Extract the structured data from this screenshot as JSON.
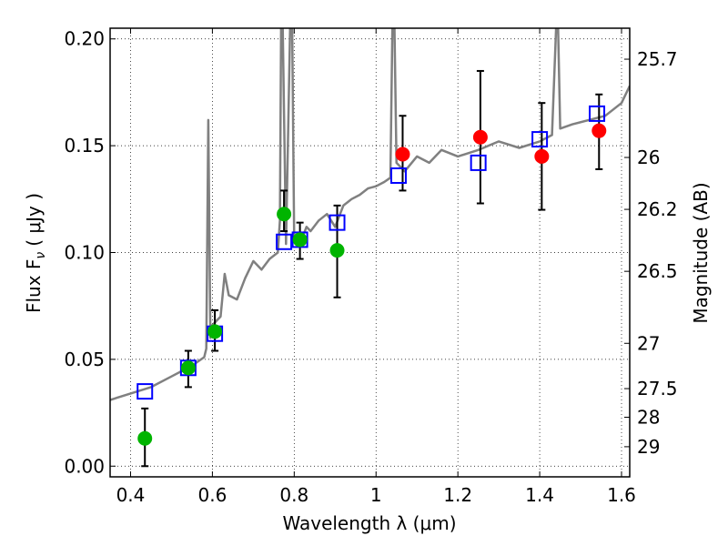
{
  "chart_data": {
    "type": "scatter",
    "x_label": "Wavelength  λ (μm)",
    "y_label": "Flux  F",
    "y_label_sub": "ν",
    "y_label_unit": "( μJy )",
    "y2_label": "Magnitude (AB)",
    "xlim": [
      0.35,
      1.62
    ],
    "ylim": [
      -0.005,
      0.205
    ],
    "x_ticks": [
      0.4,
      0.6,
      0.8,
      1.0,
      1.2,
      1.4,
      1.6
    ],
    "x_tick_labels": [
      "0.4",
      "0.6",
      "0.8",
      "1",
      "1.2",
      "1.4",
      "1.6"
    ],
    "y_ticks": [
      0.0,
      0.05,
      0.1,
      0.15,
      0.2
    ],
    "y_tick_labels": [
      "0.00",
      "0.05",
      "0.10",
      "0.15",
      "0.20"
    ],
    "y2_ticks": [
      {
        "label": "25.7",
        "flux": 0.1905
      },
      {
        "label": "26",
        "flux": 0.1445
      },
      {
        "label": "26.2",
        "flux": 0.1202
      },
      {
        "label": "26.5",
        "flux": 0.0912
      },
      {
        "label": "27",
        "flux": 0.0575
      },
      {
        "label": "27.5",
        "flux": 0.0363
      },
      {
        "label": "28",
        "flux": 0.0229
      },
      {
        "label": "29",
        "flux": 0.0091
      }
    ],
    "grid": true,
    "template_spectrum": {
      "color": "#808080",
      "x": [
        0.35,
        0.4,
        0.45,
        0.5,
        0.55,
        0.58,
        0.585,
        0.59,
        0.595,
        0.6,
        0.62,
        0.63,
        0.64,
        0.66,
        0.68,
        0.7,
        0.72,
        0.74,
        0.76,
        0.765,
        0.768,
        0.772,
        0.78,
        0.79,
        0.795,
        0.8,
        0.81,
        0.82,
        0.83,
        0.84,
        0.86,
        0.88,
        0.9,
        0.92,
        0.94,
        0.96,
        0.98,
        1.0,
        1.02,
        1.035,
        1.04,
        1.045,
        1.05,
        1.07,
        1.1,
        1.13,
        1.16,
        1.2,
        1.25,
        1.3,
        1.35,
        1.4,
        1.43,
        1.44,
        1.445,
        1.45,
        1.48,
        1.52,
        1.56,
        1.6,
        1.62
      ],
      "y": [
        0.031,
        0.034,
        0.037,
        0.042,
        0.047,
        0.051,
        0.055,
        0.162,
        0.06,
        0.066,
        0.07,
        0.09,
        0.08,
        0.078,
        0.088,
        0.096,
        0.092,
        0.097,
        0.1,
        0.115,
        0.205,
        0.205,
        0.104,
        0.205,
        0.205,
        0.105,
        0.104,
        0.107,
        0.112,
        0.11,
        0.115,
        0.118,
        0.112,
        0.122,
        0.125,
        0.127,
        0.13,
        0.131,
        0.133,
        0.135,
        0.205,
        0.205,
        0.142,
        0.138,
        0.145,
        0.142,
        0.148,
        0.145,
        0.148,
        0.152,
        0.149,
        0.152,
        0.155,
        0.205,
        0.205,
        0.158,
        0.16,
        0.162,
        0.164,
        0.17,
        0.178
      ]
    },
    "model_fluxes": {
      "color": "#0000ff",
      "marker": "open-square",
      "x": [
        0.435,
        0.541,
        0.606,
        0.775,
        0.814,
        0.905,
        1.055,
        1.25,
        1.4,
        1.54
      ],
      "y": [
        0.035,
        0.046,
        0.062,
        0.105,
        0.106,
        0.114,
        0.136,
        0.142,
        0.153,
        0.165
      ]
    },
    "observed_optical": {
      "color": "#00b400",
      "marker": "filled-circle",
      "x": [
        0.435,
        0.541,
        0.606,
        0.775,
        0.814,
        0.905
      ],
      "y": [
        0.013,
        0.046,
        0.063,
        0.118,
        0.106,
        0.101
      ],
      "err_low": [
        0.0,
        0.037,
        0.054,
        0.11,
        0.097,
        0.079
      ],
      "err_high": [
        0.027,
        0.054,
        0.073,
        0.129,
        0.114,
        0.122
      ]
    },
    "observed_nir": {
      "color": "#ff0000",
      "marker": "filled-circle",
      "x": [
        1.065,
        1.255,
        1.405,
        1.545
      ],
      "y": [
        0.146,
        0.154,
        0.145,
        0.157
      ],
      "err_low": [
        0.129,
        0.123,
        0.12,
        0.139
      ],
      "err_high": [
        0.164,
        0.185,
        0.17,
        0.174
      ]
    }
  }
}
